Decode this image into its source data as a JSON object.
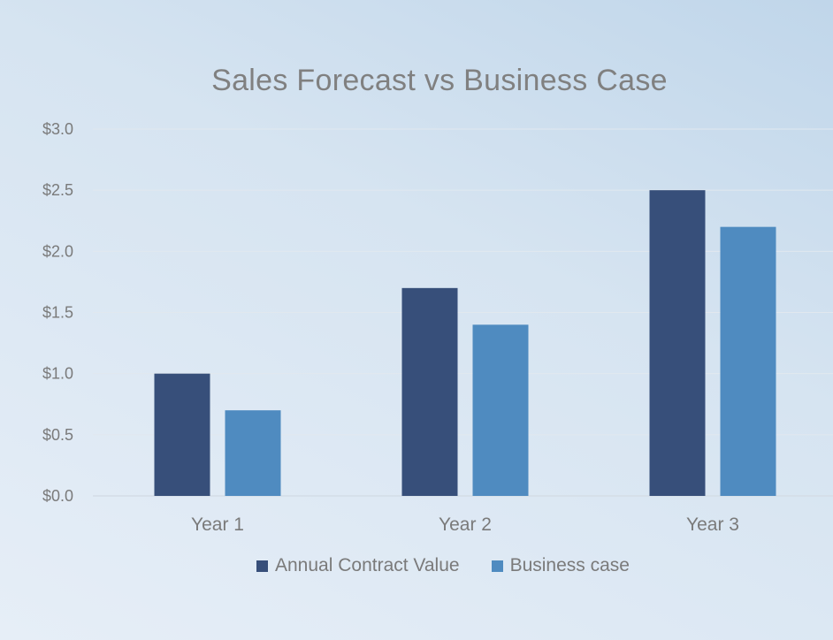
{
  "chart_data": {
    "type": "bar",
    "title": "Sales Forecast vs Business Case",
    "categories": [
      "Year 1",
      "Year 2",
      "Year 3"
    ],
    "series": [
      {
        "name": "Annual Contract Value",
        "values": [
          1.0,
          1.7,
          2.5
        ],
        "color": "#374f7a"
      },
      {
        "name": "Business case",
        "values": [
          0.7,
          1.4,
          2.2
        ],
        "color": "#4f8bc0"
      }
    ],
    "y_ticks": [
      "$0.0",
      "$0.5",
      "$1.0",
      "$1.5",
      "$2.0",
      "$2.5",
      "$3.0"
    ],
    "ylim": [
      0,
      3
    ],
    "grid": true,
    "legend_position": "bottom"
  }
}
